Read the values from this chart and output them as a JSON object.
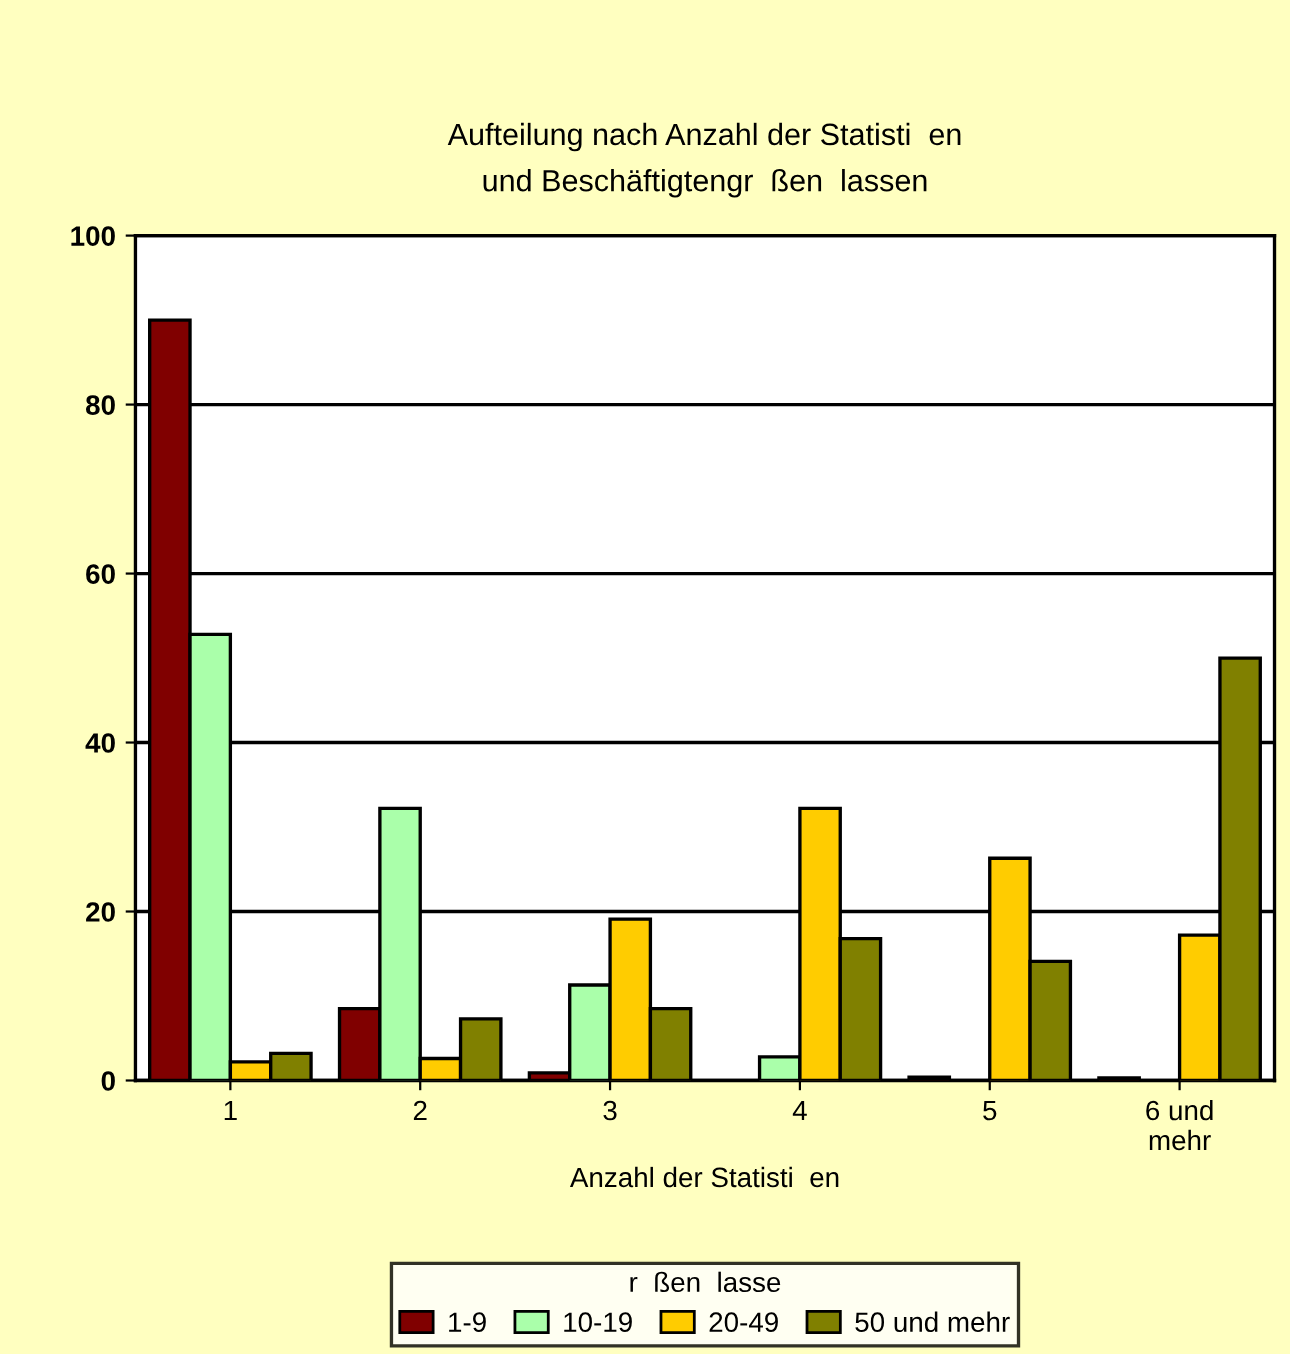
{
  "chart_data": {
    "type": "bar",
    "title": "Aufteilung nach Anzahl der Statisti  en\nund Beschäftigtengr  ßen  lassen",
    "xlabel": "Anzahl der Statisti  en",
    "legend_title": "r  ßen  lasse",
    "categories": [
      "1",
      "2",
      "3",
      "4",
      "5",
      "6 und\nmehr"
    ],
    "series": [
      {
        "name": "1-9",
        "color": "#800000",
        "values": [
          90,
          8.5,
          0.9,
          null,
          0.4,
          0.3
        ]
      },
      {
        "name": "10-19",
        "color": "#aaffaa",
        "values": [
          52.8,
          32.2,
          11.3,
          2.8,
          null,
          null
        ]
      },
      {
        "name": "20-49",
        "color": "#ffcc00",
        "values": [
          2.2,
          2.6,
          19.1,
          32.2,
          26.3,
          17.2
        ]
      },
      {
        "name": "50 und mehr",
        "color": "#808000",
        "values": [
          3.2,
          7.3,
          8.5,
          16.8,
          14.1,
          50.0
        ]
      }
    ],
    "ylim": [
      0,
      100
    ],
    "yticks": [
      0,
      20,
      40,
      60,
      80,
      100
    ],
    "grid": "y",
    "legend": "bottom"
  }
}
